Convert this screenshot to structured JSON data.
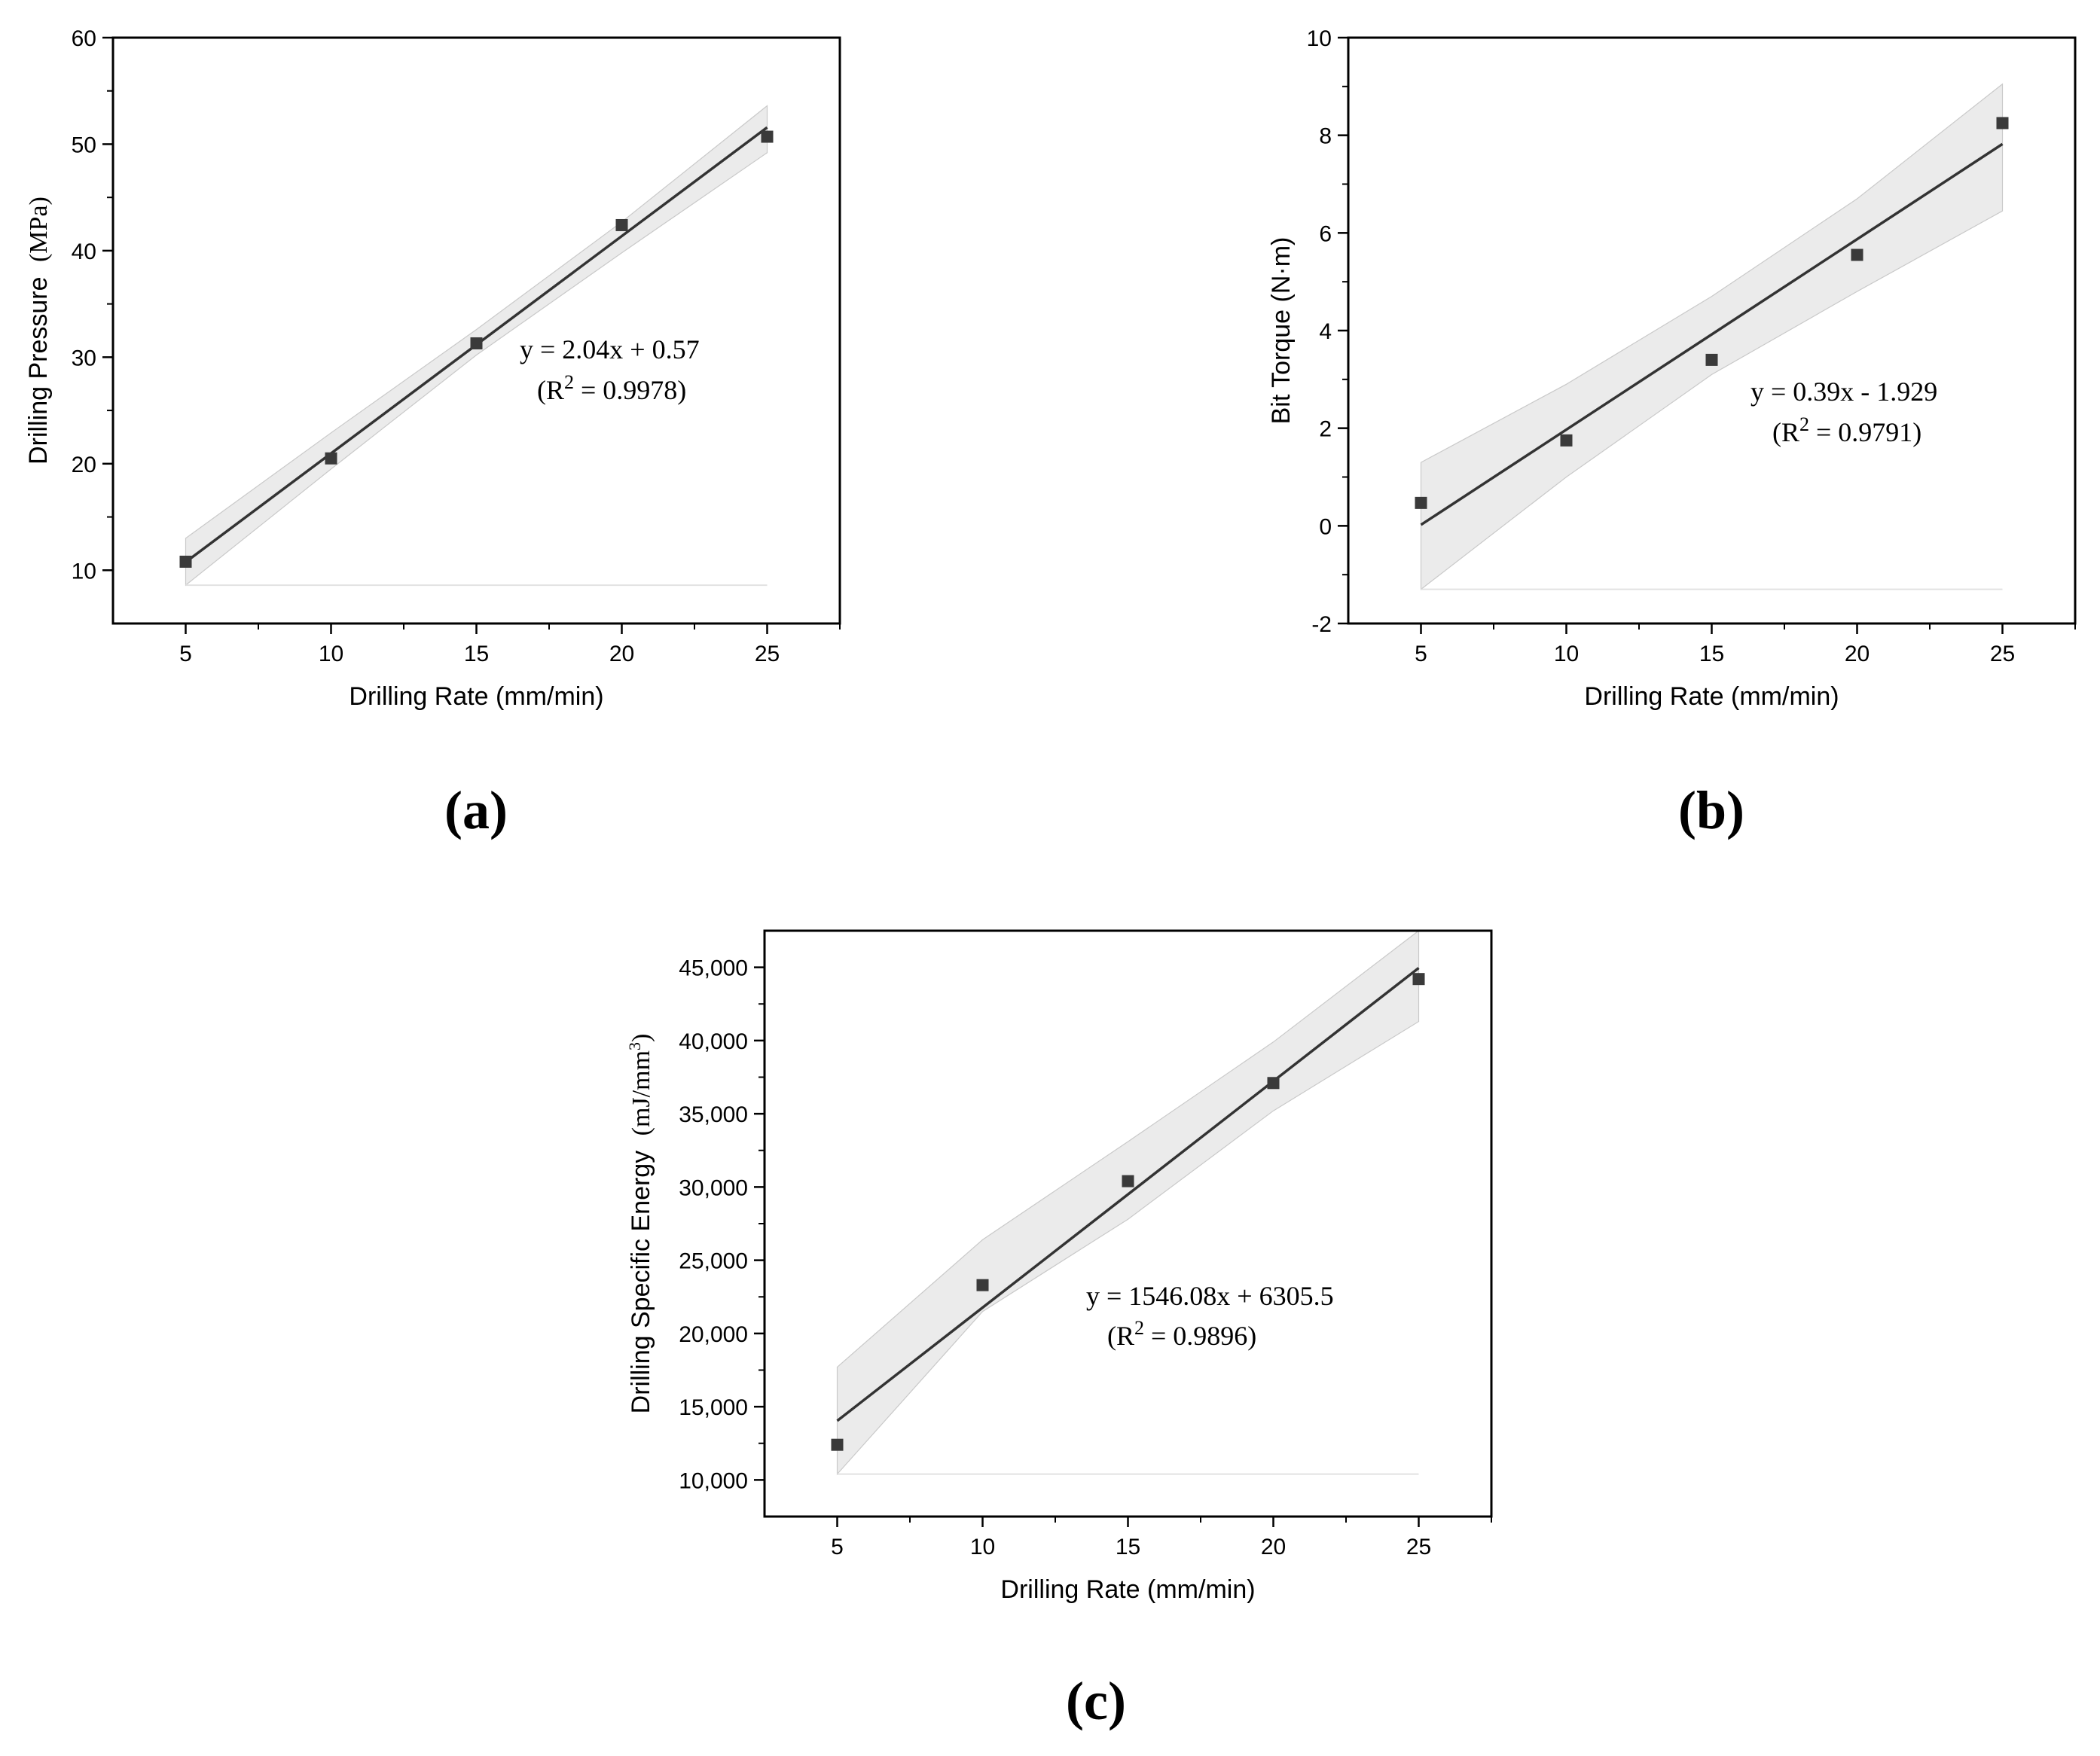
{
  "panel_labels": [
    "(a)",
    "(b)",
    "(c)"
  ],
  "chart_data": [
    {
      "type": "scatter",
      "panel": "(a)",
      "xlabel": "Drilling Rate (mm/min)",
      "ylabel_main": "Drilling Pressure",
      "ylabel_unit": "(MPa)",
      "xlim": [
        2.5,
        27.5
      ],
      "ylim": [
        5,
        60
      ],
      "xticks": [
        5,
        10,
        15,
        20,
        25
      ],
      "yticks": [
        10,
        20,
        30,
        40,
        50,
        60
      ],
      "ytick_labels": [
        "10",
        "20",
        "30",
        "40",
        "50",
        "60"
      ],
      "minor_y": [
        15,
        25,
        35,
        45,
        55
      ],
      "points": {
        "x": [
          5,
          10,
          15,
          20,
          25
        ],
        "y": [
          10.8,
          20.5,
          31.3,
          42.4,
          50.7
        ]
      },
      "fit": {
        "slope": 2.04,
        "intercept": 0.57
      },
      "band": {
        "upper": [
          13.0,
          22.9,
          32.6,
          42.7,
          53.6
        ],
        "lower": [
          8.6,
          19.5,
          30.2,
          39.8,
          49.2
        ]
      },
      "annotation": {
        "text": "y = 2.04x + 0.57",
        "r2_prefix": "(R",
        "r2_value": " = 0.9978)"
      },
      "grid": false,
      "legend": "none"
    },
    {
      "type": "scatter",
      "panel": "(b)",
      "xlabel": "Drilling Rate (mm/min)",
      "ylabel_main": "Bit Torque (N·m)",
      "ylabel_unit": "",
      "xlim": [
        2.5,
        27.5
      ],
      "ylim": [
        -2,
        10
      ],
      "xticks": [
        5,
        10,
        15,
        20,
        25
      ],
      "yticks": [
        -2,
        0,
        2,
        4,
        6,
        8,
        10
      ],
      "ytick_labels": [
        "-2",
        "0",
        "2",
        "4",
        "6",
        "8",
        "10"
      ],
      "minor_y": [
        -1,
        1,
        3,
        5,
        7,
        9
      ],
      "points": {
        "x": [
          5,
          10,
          15,
          20,
          25
        ],
        "y": [
          0.47,
          1.75,
          3.4,
          5.55,
          8.25
        ]
      },
      "fit": {
        "slope": 0.39,
        "intercept": -1.929
      },
      "band": {
        "upper": [
          1.3,
          2.9,
          4.7,
          6.7,
          9.05
        ],
        "lower": [
          -1.3,
          1.0,
          3.1,
          4.8,
          6.45
        ]
      },
      "annotation": {
        "text": "y = 0.39x - 1.929",
        "r2_prefix": "(R",
        "r2_value": " = 0.9791)"
      },
      "grid": false,
      "legend": "none"
    },
    {
      "type": "scatter",
      "panel": "(c)",
      "xlabel": "Drilling Rate (mm/min)",
      "ylabel_main": "Drilling Specific Energy",
      "ylabel_unit": "(mJ/mm",
      "ylabel_unit_sup": "3",
      "ylabel_unit_close": ")",
      "xlim": [
        2.5,
        27.5
      ],
      "ylim": [
        7500,
        47500
      ],
      "xticks": [
        5,
        10,
        15,
        20,
        25
      ],
      "yticks": [
        10000,
        15000,
        20000,
        25000,
        30000,
        35000,
        40000,
        45000
      ],
      "ytick_labels": [
        "10,000",
        "15,000",
        "20,000",
        "25,000",
        "30,000",
        "35,000",
        "40,000",
        "45,000"
      ],
      "minor_y": [
        12500,
        17500,
        22500,
        27500,
        32500,
        37500,
        42500
      ],
      "points": {
        "x": [
          5,
          10,
          15,
          20,
          25
        ],
        "y": [
          12400,
          23300,
          30400,
          37100,
          44200
        ]
      },
      "fit": {
        "slope": 1546.08,
        "intercept": 6305.5
      },
      "band": {
        "upper": [
          17700,
          26400,
          33100,
          39900,
          47500
        ],
        "lower": [
          10400,
          21500,
          27800,
          35200,
          41300
        ]
      },
      "annotation": {
        "text": "y = 1546.08x + 6305.5",
        "r2_prefix": "(R",
        "r2_value": " = 0.9896)"
      },
      "grid": false,
      "legend": "none"
    }
  ]
}
